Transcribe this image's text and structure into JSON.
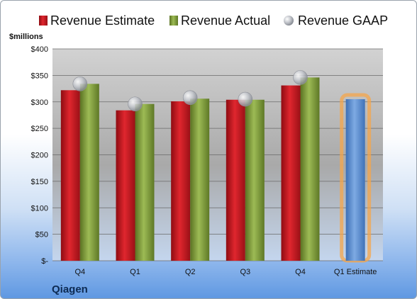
{
  "chart_data": {
    "type": "bar",
    "categories": [
      "Q4",
      "Q1",
      "Q2",
      "Q3",
      "Q4",
      "Q1 Estimate"
    ],
    "series": [
      {
        "name": "Revenue Estimate",
        "values": [
          322,
          284,
          301,
          304,
          331,
          null
        ]
      },
      {
        "name": "Revenue Actual",
        "values": [
          334,
          296,
          306,
          304,
          346,
          305
        ]
      },
      {
        "name": "Revenue GAAP",
        "values": [
          334,
          296,
          308,
          305,
          346,
          null
        ]
      }
    ],
    "ylabel": "$millions",
    "ylim": [
      0,
      400
    ],
    "yticks": [
      0,
      50,
      100,
      150,
      200,
      250,
      300,
      350,
      400
    ],
    "ytick_labels": [
      "$-",
      "$50",
      "$100",
      "$150",
      "$200",
      "$250",
      "$300",
      "$350",
      "$400"
    ],
    "grid": true,
    "legend": "top",
    "company": "Qiagen",
    "colors": {
      "estimate": "#c0141c",
      "actual": "#7f9c3a",
      "gaap": "#b8bcc4",
      "forecast": "#5b8fd0",
      "forecast_glow": "#f5a64a"
    }
  }
}
